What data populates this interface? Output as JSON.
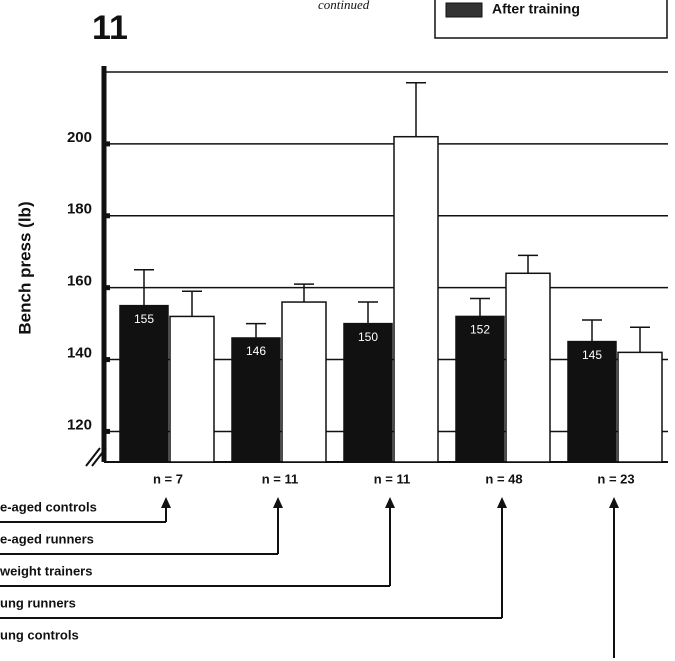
{
  "chart_data": {
    "type": "bar",
    "figure_number": "11",
    "note": "continued",
    "ylabel": "Bench press (lb)",
    "categories": [
      "n = 7",
      "n = 11",
      "n = 11",
      "n = 48",
      "n = 23"
    ],
    "group_labels": [
      "e-aged controls",
      "e-aged runners",
      "weight trainers",
      "ung runners",
      "ung controls"
    ],
    "series": [
      {
        "color": "#111111",
        "values": [
          155,
          146,
          150,
          152,
          145
        ],
        "errors": [
          10,
          4,
          6,
          5,
          6
        ]
      },
      {
        "name": "After training",
        "color": "#ffffff",
        "values": [
          152,
          156,
          202,
          164,
          142
        ],
        "errors": [
          7,
          5,
          15,
          5,
          7
        ]
      }
    ],
    "ylim": [
      111.5,
      220
    ],
    "yticks": [
      120,
      140,
      160,
      180,
      200
    ],
    "grid": true
  }
}
